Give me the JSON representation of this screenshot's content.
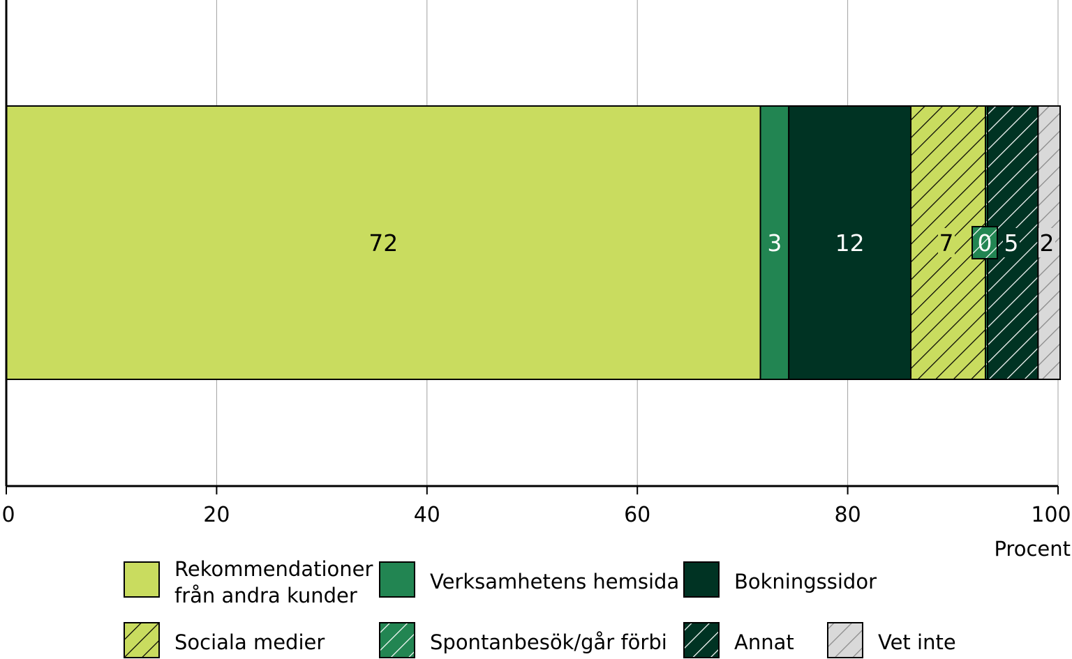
{
  "chart_data": {
    "type": "bar",
    "orientation": "horizontal",
    "stacked": true,
    "title": "",
    "xlabel": "Procent",
    "ylabel": "",
    "xlim": [
      0,
      100
    ],
    "xticks": [
      "0",
      "20",
      "40",
      "60",
      "80",
      "100"
    ],
    "grid": true,
    "legend_position": "bottom",
    "categories": [
      ""
    ],
    "series": [
      {
        "name": "Rekommendationer från andra kunder",
        "name_lines": [
          "Rekommendationer",
          "från andra kunder"
        ],
        "values": [
          71.7
        ],
        "label": "72",
        "color": "#c9dc5f",
        "hatch": false,
        "label_color": "#000000"
      },
      {
        "name": "Verksamhetens hemsida",
        "values": [
          2.7
        ],
        "label": "3",
        "color": "#228552",
        "hatch": false,
        "label_color": "#ffffff"
      },
      {
        "name": "Bokningssidor",
        "values": [
          11.6
        ],
        "label": "12",
        "color": "#003323",
        "hatch": false,
        "label_color": "#ffffff"
      },
      {
        "name": "Sociala medier",
        "values": [
          7.1
        ],
        "label": "7",
        "color": "#c9dc5f",
        "hatch": true,
        "hatch_color": "#000000",
        "label_color": "#000000"
      },
      {
        "name": "Spontanbesök/går förbi",
        "values": [
          0.2
        ],
        "label": "0",
        "color": "#228552",
        "hatch": true,
        "hatch_color": "#ffffff",
        "label_color": "#ffffff"
      },
      {
        "name": "Annat",
        "values": [
          4.8
        ],
        "label": "5",
        "color": "#003323",
        "hatch": true,
        "hatch_color": "#ffffff",
        "label_color": "#ffffff"
      },
      {
        "name": "Vet inte",
        "values": [
          2.1
        ],
        "label": "2",
        "color": "#d9d9d9",
        "hatch": true,
        "hatch_color": "#888888",
        "label_color": "#000000"
      }
    ]
  }
}
